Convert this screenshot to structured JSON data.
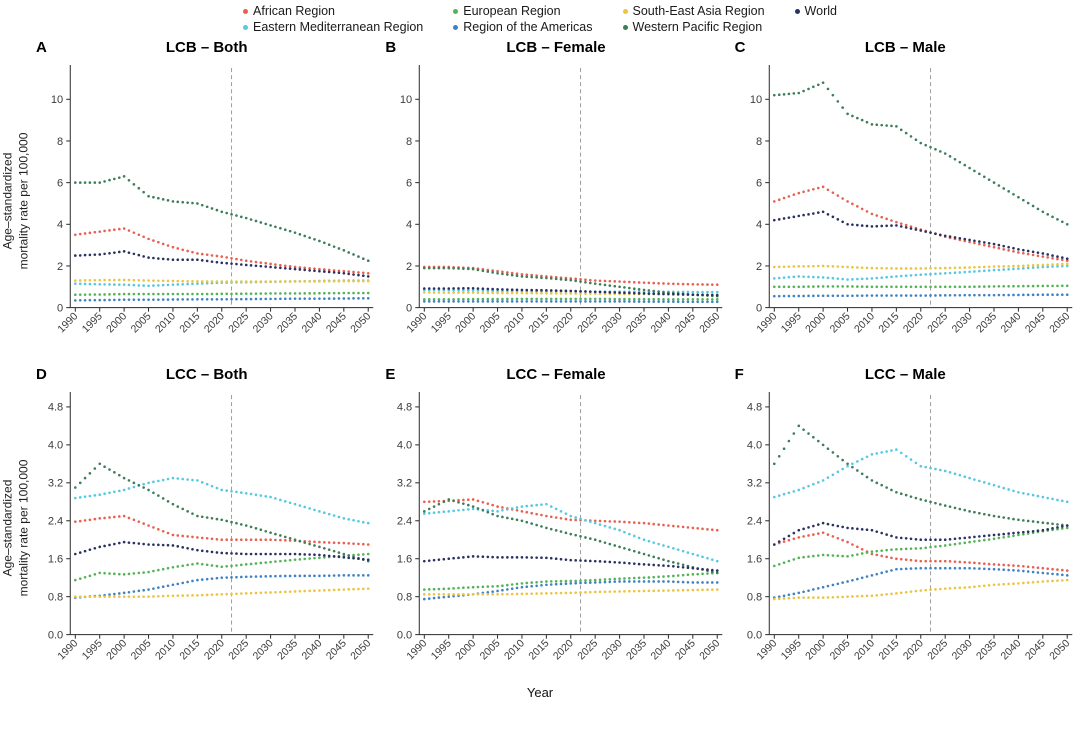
{
  "legend": {
    "items": [
      {
        "label": "African Region",
        "color": "#e8604f"
      },
      {
        "label": "Eastern Mediterranean Region",
        "color": "#56c8e1"
      },
      {
        "label": "European Region",
        "color": "#54b355"
      },
      {
        "label": "Region of the Americas",
        "color": "#3f82c4"
      },
      {
        "label": "South-East Asia Region",
        "color": "#ecc440"
      },
      {
        "label": "Western Pacific Region",
        "color": "#3c7d5a"
      },
      {
        "label": "World",
        "color": "#2a3161"
      }
    ],
    "columns": [
      [
        0,
        1
      ],
      [
        2,
        3
      ],
      [
        4,
        5
      ],
      [
        6
      ]
    ]
  },
  "axis": {
    "x_label": "Year",
    "y_label_line1": "Age–standardized",
    "y_label_line2": "mortality rate per 100,000",
    "x_ticks": [
      1990,
      1995,
      2000,
      2005,
      2010,
      2015,
      2020,
      2025,
      2030,
      2035,
      2040,
      2045,
      2050
    ],
    "vline_year": 2022,
    "vline_color": "#9e9e9e",
    "axis_color": "#2a2a2a",
    "tick_text_color": "#3c3c3c"
  },
  "chart_data": [
    {
      "type": "scatter",
      "panel_label": "A",
      "title": "LCB – Both",
      "x": [
        1990,
        1995,
        2000,
        2005,
        2010,
        2015,
        2020,
        2025,
        2030,
        2035,
        2040,
        2045,
        2050
      ],
      "ylim": [
        0,
        11.5
      ],
      "yticks": [
        0,
        2,
        4,
        6,
        8,
        10
      ],
      "ytick_decimals": 0,
      "vline_x": 2022,
      "series": [
        {
          "name": "African Region",
          "values": [
            3.5,
            3.65,
            3.8,
            3.3,
            2.9,
            2.6,
            2.45,
            2.25,
            2.1,
            1.95,
            1.85,
            1.75,
            1.65
          ]
        },
        {
          "name": "Eastern Mediterranean Region",
          "values": [
            1.15,
            1.12,
            1.1,
            1.05,
            1.1,
            1.15,
            1.2,
            1.22,
            1.24,
            1.26,
            1.28,
            1.3,
            1.3
          ]
        },
        {
          "name": "European Region",
          "values": [
            0.62,
            0.63,
            0.65,
            0.65,
            0.65,
            0.65,
            0.66,
            0.67,
            0.68,
            0.68,
            0.69,
            0.7,
            0.7
          ]
        },
        {
          "name": "Region of the Americas",
          "values": [
            0.35,
            0.36,
            0.38,
            0.38,
            0.39,
            0.4,
            0.4,
            0.41,
            0.42,
            0.43,
            0.43,
            0.44,
            0.45
          ]
        },
        {
          "name": "South-East Asia Region",
          "values": [
            1.3,
            1.32,
            1.33,
            1.3,
            1.28,
            1.26,
            1.25,
            1.25,
            1.25,
            1.26,
            1.26,
            1.27,
            1.27
          ]
        },
        {
          "name": "Western Pacific Region",
          "values": [
            6.0,
            6.0,
            6.3,
            5.35,
            5.1,
            5.0,
            4.6,
            4.3,
            3.95,
            3.6,
            3.2,
            2.75,
            2.25
          ]
        },
        {
          "name": "World",
          "values": [
            2.5,
            2.55,
            2.7,
            2.4,
            2.3,
            2.3,
            2.15,
            2.05,
            1.95,
            1.85,
            1.75,
            1.65,
            1.5
          ]
        }
      ]
    },
    {
      "type": "scatter",
      "panel_label": "B",
      "title": "LCB – Female",
      "x": [
        1990,
        1995,
        2000,
        2005,
        2010,
        2015,
        2020,
        2025,
        2030,
        2035,
        2040,
        2045,
        2050
      ],
      "ylim": [
        0,
        11.5
      ],
      "yticks": [
        0,
        2,
        4,
        6,
        8,
        10
      ],
      "ytick_decimals": 0,
      "vline_x": 2022,
      "series": [
        {
          "name": "African Region",
          "values": [
            1.95,
            1.95,
            1.9,
            1.75,
            1.6,
            1.5,
            1.4,
            1.3,
            1.25,
            1.2,
            1.15,
            1.12,
            1.1
          ]
        },
        {
          "name": "Eastern Mediterranean Region",
          "values": [
            0.85,
            0.84,
            0.83,
            0.8,
            0.79,
            0.78,
            0.78,
            0.77,
            0.77,
            0.76,
            0.76,
            0.75,
            0.75
          ]
        },
        {
          "name": "European Region",
          "values": [
            0.4,
            0.4,
            0.41,
            0.41,
            0.42,
            0.42,
            0.42,
            0.42,
            0.41,
            0.41,
            0.4,
            0.4,
            0.4
          ]
        },
        {
          "name": "Region of the Americas",
          "values": [
            0.3,
            0.3,
            0.3,
            0.3,
            0.3,
            0.3,
            0.3,
            0.3,
            0.3,
            0.29,
            0.29,
            0.28,
            0.28
          ]
        },
        {
          "name": "South-East Asia Region",
          "values": [
            0.73,
            0.72,
            0.72,
            0.7,
            0.7,
            0.69,
            0.68,
            0.67,
            0.66,
            0.65,
            0.64,
            0.63,
            0.62
          ]
        },
        {
          "name": "Western Pacific Region",
          "values": [
            1.9,
            1.9,
            1.85,
            1.65,
            1.5,
            1.42,
            1.32,
            1.15,
            1.0,
            0.85,
            0.72,
            0.62,
            0.55
          ]
        },
        {
          "name": "World",
          "values": [
            0.92,
            0.92,
            0.93,
            0.88,
            0.85,
            0.83,
            0.8,
            0.76,
            0.72,
            0.68,
            0.65,
            0.62,
            0.6
          ]
        }
      ]
    },
    {
      "type": "scatter",
      "panel_label": "C",
      "title": "LCB – Male",
      "x": [
        1990,
        1995,
        2000,
        2005,
        2010,
        2015,
        2020,
        2025,
        2030,
        2035,
        2040,
        2045,
        2050
      ],
      "ylim": [
        0,
        11.5
      ],
      "yticks": [
        0,
        2,
        4,
        6,
        8,
        10
      ],
      "ytick_decimals": 0,
      "vline_x": 2022,
      "series": [
        {
          "name": "African Region",
          "values": [
            5.1,
            5.5,
            5.8,
            5.1,
            4.5,
            4.1,
            3.75,
            3.4,
            3.15,
            2.9,
            2.65,
            2.45,
            2.25
          ]
        },
        {
          "name": "Eastern Mediterranean Region",
          "values": [
            1.4,
            1.5,
            1.45,
            1.35,
            1.4,
            1.5,
            1.58,
            1.65,
            1.72,
            1.8,
            1.87,
            1.95,
            2.0
          ]
        },
        {
          "name": "European Region",
          "values": [
            1.0,
            1.0,
            1.02,
            1.02,
            1.0,
            1.0,
            1.0,
            1.0,
            1.0,
            1.02,
            1.03,
            1.04,
            1.05
          ]
        },
        {
          "name": "Region of the Americas",
          "values": [
            0.55,
            0.56,
            0.57,
            0.57,
            0.58,
            0.58,
            0.58,
            0.59,
            0.6,
            0.6,
            0.61,
            0.62,
            0.62
          ]
        },
        {
          "name": "South-East Asia Region",
          "values": [
            1.95,
            1.98,
            2.0,
            1.95,
            1.9,
            1.88,
            1.88,
            1.9,
            1.93,
            1.97,
            2.0,
            2.05,
            2.1
          ]
        },
        {
          "name": "Western Pacific Region",
          "values": [
            10.2,
            10.3,
            10.8,
            9.3,
            8.8,
            8.7,
            7.9,
            7.4,
            6.7,
            6.0,
            5.3,
            4.6,
            4.0
          ]
        },
        {
          "name": "World",
          "values": [
            4.2,
            4.4,
            4.6,
            4.0,
            3.9,
            3.95,
            3.7,
            3.45,
            3.25,
            3.05,
            2.8,
            2.6,
            2.35
          ]
        }
      ]
    },
    {
      "type": "scatter",
      "panel_label": "D",
      "title": "LCC – Both",
      "x": [
        1990,
        1995,
        2000,
        2005,
        2010,
        2015,
        2020,
        2025,
        2030,
        2035,
        2040,
        2045,
        2050
      ],
      "ylim": [
        0,
        5.05
      ],
      "yticks": [
        0,
        0.8,
        1.6,
        2.4,
        3.2,
        4.0,
        4.8
      ],
      "ytick_decimals": 1,
      "vline_x": 2022,
      "series": [
        {
          "name": "African Region",
          "values": [
            2.38,
            2.45,
            2.5,
            2.3,
            2.1,
            2.05,
            2.0,
            2.0,
            2.0,
            1.98,
            1.95,
            1.93,
            1.9
          ]
        },
        {
          "name": "Eastern Mediterranean Region",
          "values": [
            2.88,
            2.95,
            3.05,
            3.2,
            3.3,
            3.25,
            3.05,
            2.98,
            2.9,
            2.75,
            2.6,
            2.45,
            2.35
          ]
        },
        {
          "name": "European Region",
          "values": [
            1.15,
            1.3,
            1.27,
            1.32,
            1.42,
            1.5,
            1.43,
            1.48,
            1.53,
            1.58,
            1.62,
            1.66,
            1.7
          ]
        },
        {
          "name": "Region of the Americas",
          "values": [
            0.78,
            0.82,
            0.88,
            0.95,
            1.05,
            1.15,
            1.2,
            1.22,
            1.23,
            1.24,
            1.24,
            1.25,
            1.25
          ]
        },
        {
          "name": "South-East Asia Region",
          "values": [
            0.8,
            0.8,
            0.8,
            0.8,
            0.82,
            0.83,
            0.85,
            0.87,
            0.89,
            0.91,
            0.93,
            0.95,
            0.97
          ]
        },
        {
          "name": "Western Pacific Region",
          "values": [
            3.1,
            3.6,
            3.3,
            3.05,
            2.75,
            2.5,
            2.42,
            2.3,
            2.15,
            2.0,
            1.85,
            1.7,
            1.55
          ]
        },
        {
          "name": "World",
          "values": [
            1.7,
            1.85,
            1.95,
            1.9,
            1.88,
            1.78,
            1.72,
            1.7,
            1.7,
            1.7,
            1.68,
            1.63,
            1.58
          ]
        }
      ]
    },
    {
      "type": "scatter",
      "panel_label": "E",
      "title": "LCC – Female",
      "x": [
        1990,
        1995,
        2000,
        2005,
        2010,
        2015,
        2020,
        2025,
        2030,
        2035,
        2040,
        2045,
        2050
      ],
      "ylim": [
        0,
        5.05
      ],
      "yticks": [
        0,
        0.8,
        1.6,
        2.4,
        3.2,
        4.0,
        4.8
      ],
      "ytick_decimals": 1,
      "vline_x": 2022,
      "series": [
        {
          "name": "African Region",
          "values": [
            2.8,
            2.82,
            2.85,
            2.7,
            2.6,
            2.5,
            2.42,
            2.4,
            2.38,
            2.35,
            2.3,
            2.25,
            2.2
          ]
        },
        {
          "name": "Eastern Mediterranean Region",
          "values": [
            2.55,
            2.6,
            2.65,
            2.6,
            2.7,
            2.75,
            2.5,
            2.35,
            2.2,
            2.0,
            1.85,
            1.7,
            1.55
          ]
        },
        {
          "name": "European Region",
          "values": [
            0.95,
            0.97,
            1.0,
            1.02,
            1.08,
            1.12,
            1.13,
            1.15,
            1.18,
            1.2,
            1.23,
            1.27,
            1.3
          ]
        },
        {
          "name": "Region of the Americas",
          "values": [
            0.75,
            0.8,
            0.85,
            0.92,
            1.0,
            1.05,
            1.08,
            1.1,
            1.12,
            1.12,
            1.12,
            1.1,
            1.1
          ]
        },
        {
          "name": "South-East Asia Region",
          "values": [
            0.85,
            0.85,
            0.85,
            0.85,
            0.86,
            0.87,
            0.88,
            0.9,
            0.91,
            0.92,
            0.93,
            0.94,
            0.95
          ]
        },
        {
          "name": "Western Pacific Region",
          "values": [
            2.6,
            2.85,
            2.7,
            2.5,
            2.4,
            2.25,
            2.12,
            2.0,
            1.85,
            1.7,
            1.55,
            1.42,
            1.3
          ]
        },
        {
          "name": "World",
          "values": [
            1.55,
            1.6,
            1.65,
            1.63,
            1.63,
            1.62,
            1.57,
            1.55,
            1.52,
            1.48,
            1.45,
            1.4,
            1.35
          ]
        }
      ]
    },
    {
      "type": "scatter",
      "panel_label": "F",
      "title": "LCC – Male",
      "x": [
        1990,
        1995,
        2000,
        2005,
        2010,
        2015,
        2020,
        2025,
        2030,
        2035,
        2040,
        2045,
        2050
      ],
      "ylim": [
        0,
        5.05
      ],
      "yticks": [
        0,
        0.8,
        1.6,
        2.4,
        3.2,
        4.0,
        4.8
      ],
      "ytick_decimals": 1,
      "vline_x": 2022,
      "series": [
        {
          "name": "African Region",
          "values": [
            1.9,
            2.05,
            2.15,
            1.95,
            1.7,
            1.6,
            1.55,
            1.55,
            1.52,
            1.48,
            1.45,
            1.4,
            1.35
          ]
        },
        {
          "name": "Eastern Mediterranean Region",
          "values": [
            2.9,
            3.05,
            3.25,
            3.55,
            3.8,
            3.9,
            3.55,
            3.45,
            3.3,
            3.15,
            3.0,
            2.9,
            2.8
          ]
        },
        {
          "name": "European Region",
          "values": [
            1.45,
            1.62,
            1.68,
            1.65,
            1.75,
            1.8,
            1.82,
            1.88,
            1.95,
            2.02,
            2.1,
            2.18,
            2.25
          ]
        },
        {
          "name": "Region of the Americas",
          "values": [
            0.78,
            0.88,
            1.0,
            1.12,
            1.25,
            1.38,
            1.4,
            1.4,
            1.4,
            1.38,
            1.35,
            1.3,
            1.25
          ]
        },
        {
          "name": "South-East Asia Region",
          "values": [
            0.75,
            0.78,
            0.78,
            0.8,
            0.82,
            0.87,
            0.93,
            0.97,
            1.0,
            1.05,
            1.08,
            1.12,
            1.15
          ]
        },
        {
          "name": "Western Pacific Region",
          "values": [
            3.6,
            4.4,
            4.0,
            3.6,
            3.25,
            3.0,
            2.85,
            2.72,
            2.6,
            2.5,
            2.42,
            2.36,
            2.3
          ]
        },
        {
          "name": "World",
          "values": [
            1.9,
            2.2,
            2.35,
            2.25,
            2.2,
            2.05,
            2.0,
            2.0,
            2.05,
            2.1,
            2.15,
            2.2,
            2.3
          ]
        }
      ]
    }
  ]
}
